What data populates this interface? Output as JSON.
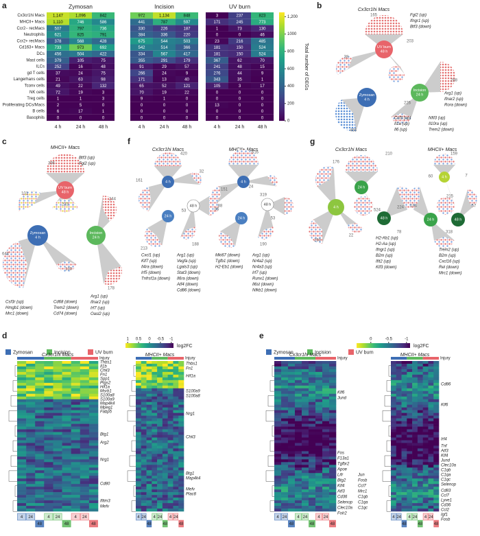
{
  "chart_data": {
    "type": "heatmap",
    "panel": "a",
    "rows": [
      "Cx3cr1hi Macs",
      "MHCII+ Macs",
      "Ccr2− recMacs",
      "Neutrophils",
      "Ccr2+ recMacs",
      "Cd163+ Macs",
      "DCs",
      "Mast cells",
      "ILCs",
      "gd T cells",
      "Langerhans cells",
      "Tconv cells",
      "NK cells",
      "Treg cells",
      "Proliferating DCs/Macs",
      "B cells",
      "Basophils"
    ],
    "groups": [
      {
        "name": "Zymosan",
        "columns": [
          "4 h",
          "24 h",
          "48 h"
        ],
        "values": [
          [
            1147,
            1096,
            842
          ],
          [
            1110,
            746,
            586
          ],
          [
            507,
            797,
            736
          ],
          [
            621,
            825,
            791
          ],
          [
            378,
            568,
            428
          ],
          [
            733,
            973,
            692
          ],
          [
            456,
            504,
            422
          ],
          [
            379,
            105,
            75
          ],
          [
            252,
            16,
            48
          ],
          [
            37,
            24,
            75
          ],
          [
            21,
            63,
            98
          ],
          [
            49,
            22,
            132
          ],
          [
            72,
            19,
            3
          ],
          [
            1,
            1,
            3
          ],
          [
            2,
            5,
            0
          ],
          [
            6,
            17,
            1
          ],
          [
            0,
            0,
            0
          ]
        ],
        "value_labels": [
          [
            "1,147",
            "1,096",
            "842"
          ],
          [
            "1,110",
            "746",
            "586"
          ],
          [
            "507",
            "797",
            "736"
          ],
          [
            "621",
            "825",
            "791"
          ],
          [
            "378",
            "568",
            "428"
          ],
          [
            "733",
            "973",
            "692"
          ],
          [
            "456",
            "504",
            "422"
          ],
          [
            "379",
            "105",
            "75"
          ],
          [
            "252",
            "16",
            "48"
          ],
          [
            "37",
            "24",
            "75"
          ],
          [
            "21",
            "63",
            "98"
          ],
          [
            "49",
            "22",
            "132"
          ],
          [
            "72",
            "19",
            "3"
          ],
          [
            "1",
            "1",
            "3"
          ],
          [
            "2",
            "5",
            "0"
          ],
          [
            "6",
            "17",
            "1"
          ],
          [
            "0",
            "0",
            "0"
          ]
        ]
      },
      {
        "name": "Incision",
        "columns": [
          "4 h",
          "24 h",
          "48 h"
        ],
        "values": [
          [
            972,
            1134,
            848
          ],
          [
            441,
            787,
            597
          ],
          [
            330,
            226,
            187
          ],
          [
            384,
            336,
            220
          ],
          [
            675,
            544,
            503
          ],
          [
            542,
            514,
            366
          ],
          [
            334,
            567,
            417
          ],
          [
            355,
            291,
            179
          ],
          [
            91,
            29,
            57
          ],
          [
            266,
            24,
            9
          ],
          [
            171,
            13,
            40
          ],
          [
            65,
            52,
            121
          ],
          [
            70,
            19,
            22
          ],
          [
            9,
            1,
            0
          ],
          [
            0,
            0,
            0
          ],
          [
            0,
            0,
            0
          ],
          [
            0,
            0,
            0
          ]
        ],
        "value_labels": [
          [
            "972",
            "1,134",
            "848"
          ],
          [
            "441",
            "787",
            "597"
          ],
          [
            "330",
            "226",
            "187"
          ],
          [
            "384",
            "336",
            "220"
          ],
          [
            "675",
            "544",
            "503"
          ],
          [
            "542",
            "514",
            "366"
          ],
          [
            "334",
            "567",
            "417"
          ],
          [
            "355",
            "291",
            "179"
          ],
          [
            "91",
            "29",
            "57"
          ],
          [
            "266",
            "24",
            "9"
          ],
          [
            "171",
            "13",
            "40"
          ],
          [
            "65",
            "52",
            "121"
          ],
          [
            "70",
            "19",
            "22"
          ],
          [
            "9",
            "1",
            "0"
          ],
          [
            "0",
            "0",
            "0"
          ],
          [
            "0",
            "0",
            "0"
          ],
          [
            "0",
            "0",
            "0"
          ]
        ]
      },
      {
        "name": "UV burn",
        "columns": [
          "4 h",
          "24 h",
          "48 h"
        ],
        "values": [
          [
            3,
            237,
            823
          ],
          [
            171,
            245,
            773
          ],
          [
            1,
            73,
            130
          ],
          [
            0,
            0,
            46
          ],
          [
            23,
            216,
            485
          ],
          [
            181,
            150,
            524
          ],
          [
            181,
            150,
            524
          ],
          [
            367,
            62,
            70
          ],
          [
            241,
            48,
            15
          ],
          [
            276,
            44,
            9
          ],
          [
            343,
            35,
            1
          ],
          [
            105,
            3,
            17
          ],
          [
            0,
            0,
            0
          ],
          [
            0,
            0,
            0
          ],
          [
            13,
            0,
            0
          ],
          [
            0,
            0,
            0
          ],
          [
            0,
            0,
            0
          ]
        ],
        "value_labels": [
          [
            "3",
            "237",
            "823"
          ],
          [
            "171",
            "245",
            "773"
          ],
          [
            "1",
            "73",
            "130"
          ],
          [
            "0",
            "0",
            "46"
          ],
          [
            "23",
            "216",
            "485"
          ],
          [
            "181",
            "150",
            "524"
          ],
          [
            "181",
            "150",
            "524"
          ],
          [
            "367",
            "62",
            "70"
          ],
          [
            "241",
            "48",
            "15"
          ],
          [
            "276",
            "44",
            "9"
          ],
          [
            "343",
            "35",
            "1"
          ],
          [
            "105",
            "3",
            "17"
          ],
          [
            "0",
            "0",
            "0"
          ],
          [
            "0",
            "0",
            "0"
          ],
          [
            "13",
            "0",
            "0"
          ],
          [
            "0",
            "0",
            "0"
          ],
          [
            "0",
            "0",
            "0"
          ]
        ]
      }
    ],
    "colormap": "viridis",
    "colorbar": {
      "label": "Total number of DEGs",
      "lim": [
        0,
        1250
      ],
      "ticks": [
        0,
        200,
        400,
        600,
        800,
        1000,
        {
          "value": 1200,
          "label": "1,200"
        }
      ]
    }
  },
  "panels": {
    "b": {
      "label": "b",
      "networks": [
        {
          "title": "Cx3cr1hi Macs",
          "nodes": [
            {
              "label": [
                "UV burn",
                "48 h"
              ]
            },
            {
              "label": [
                "Incision",
                "24 h"
              ]
            },
            {
              "label": [
                "Zymosan",
                "4 h"
              ]
            }
          ],
          "counts": [
            165,
            203,
            38,
            288,
            226,
            466
          ],
          "genes": [
            [
              "Fgl2 (up)",
              "Ifngr1 (up)",
              "Btf3 (down)"
            ],
            [
              "Arg1 (up)",
              "Ifnar2 (up)",
              "Rora (down)"
            ],
            [
              "Ccl3 (up)",
              "Il1a (up)",
              "Il6 (up)"
            ],
            [
              "Nfil3 (up)",
              "Il10ra (up)",
              "Trem2 (down)"
            ]
          ]
        }
      ]
    },
    "c": {
      "label": "c",
      "networks": [
        {
          "title": "MHCII+ Macs",
          "nodes": [
            {
              "label": [
                "UV burn",
                "48 h"
              ]
            },
            {
              "label": [
                "Incision",
                "24 h"
              ]
            },
            {
              "label": [
                "Zymosan",
                "4 h"
              ]
            }
          ],
          "counts": [
            396,
            101,
            233,
            244,
            644,
            133,
            178
          ],
          "genes": [
            [
              "Btf3 (up)",
              "Fgl2 (up)"
            ],
            [
              "Csf3r (up)",
              "Hmgb1 (down)",
              "Mrc1 (down)"
            ],
            [
              "Cd68 (down)",
              "Trem2 (down)",
              "Cd74 (down)"
            ],
            [
              "Arg1 (up)",
              "Ifnar2 (up)",
              "Irf7 (up)",
              "Oasl2 (up)"
            ]
          ]
        }
      ]
    },
    "f": {
      "label": "f",
      "networks": [
        {
          "title": "Cx3cr1hi Macs",
          "nodes": [
            {
              "label": [
                "4 h"
              ]
            },
            {
              "label": [
                "48 h"
              ]
            },
            {
              "label": [
                "24 h"
              ]
            }
          ],
          "counts": [
            420,
            32,
            161,
            88,
            53,
            213,
            188
          ],
          "genes": [
            [
              "Cxcl1 (up)",
              "Klf7 (up)",
              "Il4ra (down)",
              "Irf5 (down)",
              "Tnfrsf1a (down)"
            ],
            [
              "Arg1 (up)",
              "Vegfa (up)",
              "Lgals3 (up)",
              "Stat3 (down)",
              "Il6ra (down)",
              "Atf4 (down)",
              "Cd86 (down)"
            ]
          ]
        },
        {
          "title": "MHCII+ Macs",
          "nodes": [
            {
              "label": [
                "4 h"
              ]
            },
            {
              "label": [
                "48 h"
              ]
            },
            {
              "label": [
                "24 h"
              ]
            }
          ],
          "counts": [
            616,
            151,
            24,
            319,
            86,
            53,
            190
          ],
          "genes": [
            [
              "Mki67 (down)",
              "Tgfb1 (down)",
              "H2-Eb1 (down)"
            ],
            [
              "Arg1 (up)",
              "Nr4a2 (up)",
              "Nr4a3 (up)",
              "Irf7 (up)",
              "Runx1 (down)",
              "Il6st (down)",
              "Nfkb1 (down)"
            ]
          ]
        }
      ]
    },
    "g": {
      "label": "g",
      "networks": [
        {
          "title": "Cx3cr1hi Macs",
          "nodes": [
            {
              "label": [
                "24 h"
              ]
            },
            {
              "label": [
                "4 h"
              ]
            },
            {
              "label": [
                "48 h"
              ]
            }
          ],
          "counts": [
            210,
            176,
            224,
            250,
            22,
            78,
            524
          ],
          "genes": [
            [
              "H2-Ab1 (up)",
              "H2-Aa (up)",
              "Ifngr1 (up)",
              "B2m (up)",
              "Ifit2 (up)",
              "Klf3 (down)"
            ]
          ]
        },
        {
          "title": "MHCII+ Macs",
          "nodes": [
            {
              "label": [
                "4 h"
              ]
            },
            {
              "label": [
                "24 h"
              ]
            },
            {
              "label": [
                "48 h"
              ]
            }
          ],
          "counts": [
            159,
            60,
            7,
            215,
            194,
            57,
            318
          ],
          "genes": [
            [
              "Trem2 (up)",
              "B2m (up)",
              "Cxcl16 (up)",
              "Rel (down)",
              "Mrc1 (down)"
            ]
          ]
        }
      ]
    },
    "d": {
      "label": "d",
      "legend": [
        "Zymosan",
        "Incision",
        "UV burn"
      ],
      "colorbar": {
        "label": "log2FC",
        "lim": [
          1.1,
          -1.1
        ],
        "ticks": [
          1,
          0.5,
          0,
          -0.5,
          -1
        ]
      },
      "heatmaps": [
        {
          "title": "Cx3cr1hi Macs",
          "injury_label": "Injury",
          "times": [
            "4",
            "24",
            "48"
          ],
          "genes": [
            "Thbs1",
            "Il1b",
            "Chil3",
            "Fn1",
            "Spp1",
            "Ptgs2",
            "Hif1a",
            "Msrb1",
            "S100a8",
            "S100a9",
            "Map4k4",
            "Mpeg1",
            "Fabp5",
            "Btg1",
            "Arg2",
            "Nrg1",
            "Cd80",
            "Ifitm3",
            "Mefv"
          ]
        },
        {
          "title": "MHCII+ Macs",
          "injury_label": "Injury",
          "times": [
            "4",
            "24",
            "48"
          ],
          "genes": [
            "Thbs1",
            "Fn1",
            "Hif1a",
            "S100a9",
            "S100a8",
            "Nrg1",
            "Chil3",
            "Btg1",
            "Map4k4",
            "Mefv",
            "Plac8"
          ]
        }
      ]
    },
    "e": {
      "label": "e",
      "legend": [
        "Zymosan",
        "Incision",
        "UV burn"
      ],
      "colorbar": {
        "label": "log2FC",
        "lim": [
          0.4,
          -1.1
        ],
        "ticks": [
          0,
          -0.5,
          -1
        ]
      },
      "heatmaps": [
        {
          "title": "Cx3cr1hi Macs",
          "injury_label": "Injury",
          "times": [
            "4",
            "24",
            "48"
          ],
          "genes": [
            "Klf6",
            "Jund",
            "Fos",
            "F13a1",
            "Tgfbr2",
            "Apoe",
            "Lifr",
            "Btg2",
            "Klf4",
            "Atf3",
            "Jun",
            "Fosb",
            "Ccl7",
            "Mrc1",
            "Cd36",
            "C1qb",
            "C1qa",
            "C1qc",
            "Selenop",
            "Clec10a",
            "Folr2"
          ]
        },
        {
          "title": "MHCII+ Macs",
          "injury_label": "Injury",
          "times": [
            "4",
            "24",
            "48"
          ],
          "genes": [
            "Cd86",
            "Klf6",
            "Irf4",
            "Tnf",
            "Atf3",
            "Klf4",
            "Jund",
            "Clec10a",
            "C1qb",
            "C1qa",
            "C1qc",
            "Selenop",
            "Cd83",
            "Ccl7",
            "Lyve1",
            "Cd36",
            "Ccl2",
            "Igf1",
            "Fosb"
          ]
        }
      ]
    }
  }
}
